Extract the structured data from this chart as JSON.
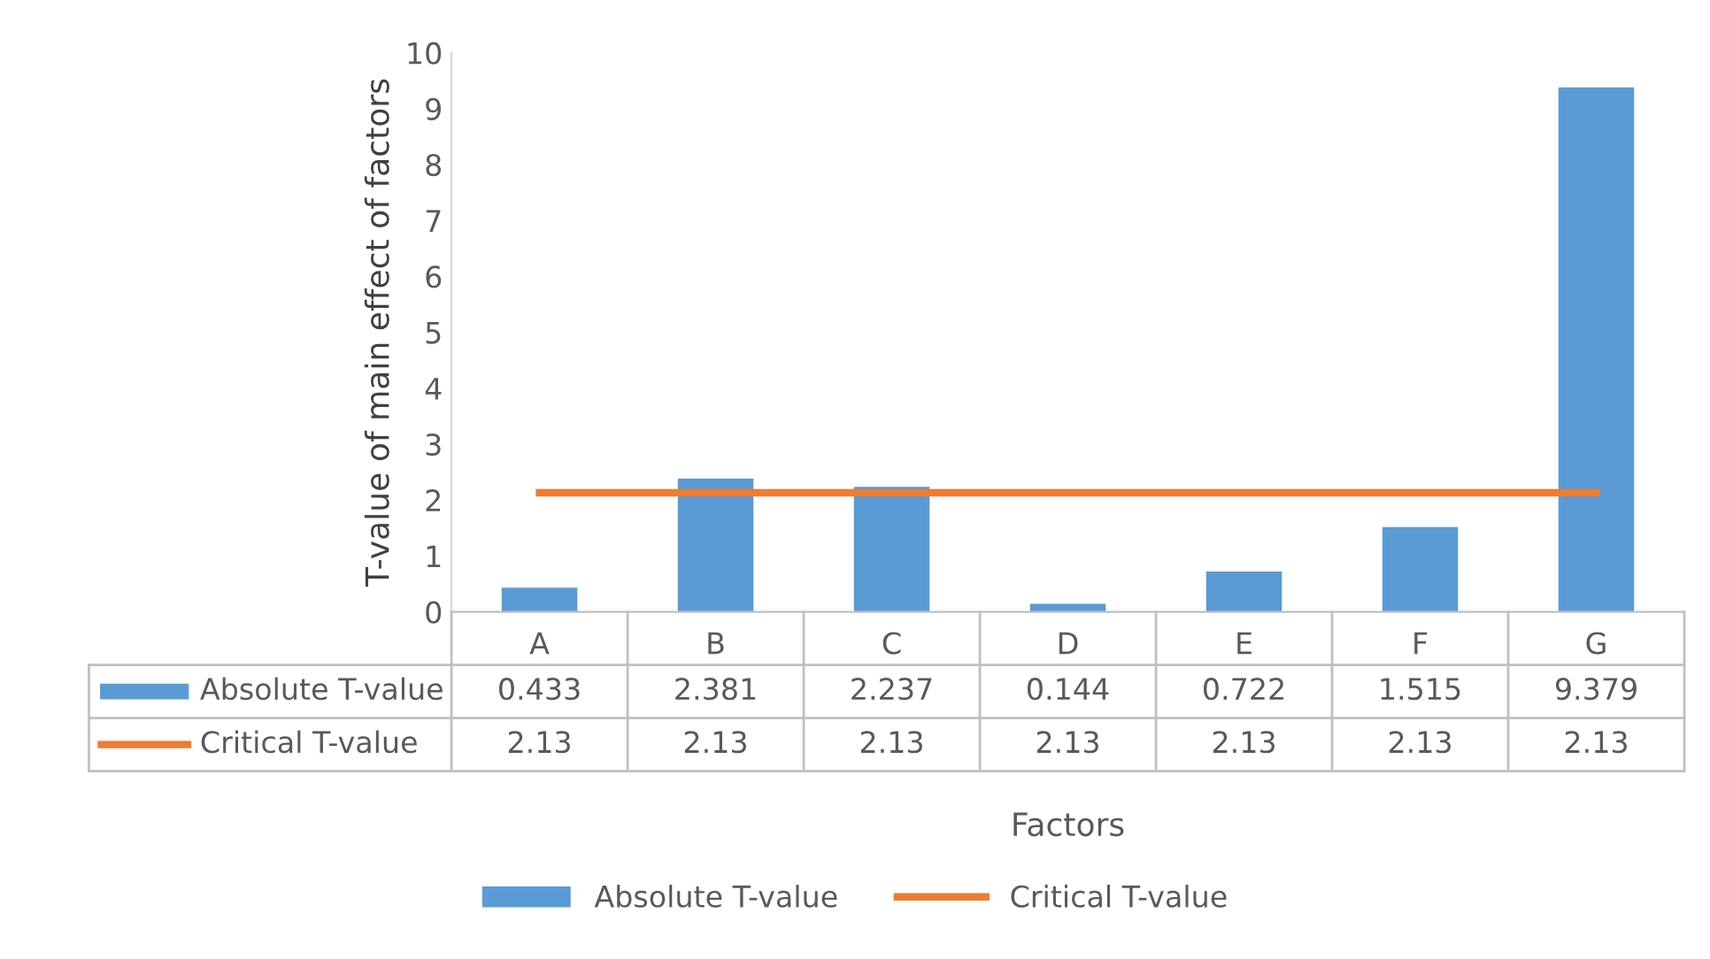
{
  "chart_data": {
    "type": "bar",
    "xlabel": "Factors",
    "ylabel": "T-value of main effect of factors",
    "categories": [
      "A",
      "B",
      "C",
      "D",
      "E",
      "F",
      "G"
    ],
    "series": [
      {
        "name": "Absolute T-value",
        "color": "#5b9bd5",
        "values": [
          0.433,
          2.381,
          2.237,
          0.144,
          0.722,
          1.515,
          9.379
        ]
      },
      {
        "name": "Critical T-value",
        "type": "line",
        "color": "#ed7d31",
        "values": [
          2.13,
          2.13,
          2.13,
          2.13,
          2.13,
          2.13,
          2.13
        ]
      }
    ],
    "ylim": [
      0,
      10
    ],
    "yticks": [
      0,
      1,
      2,
      3,
      4,
      5,
      6,
      7,
      8,
      9,
      10
    ],
    "grid": false,
    "legend": "bottom",
    "data_labels": true
  }
}
